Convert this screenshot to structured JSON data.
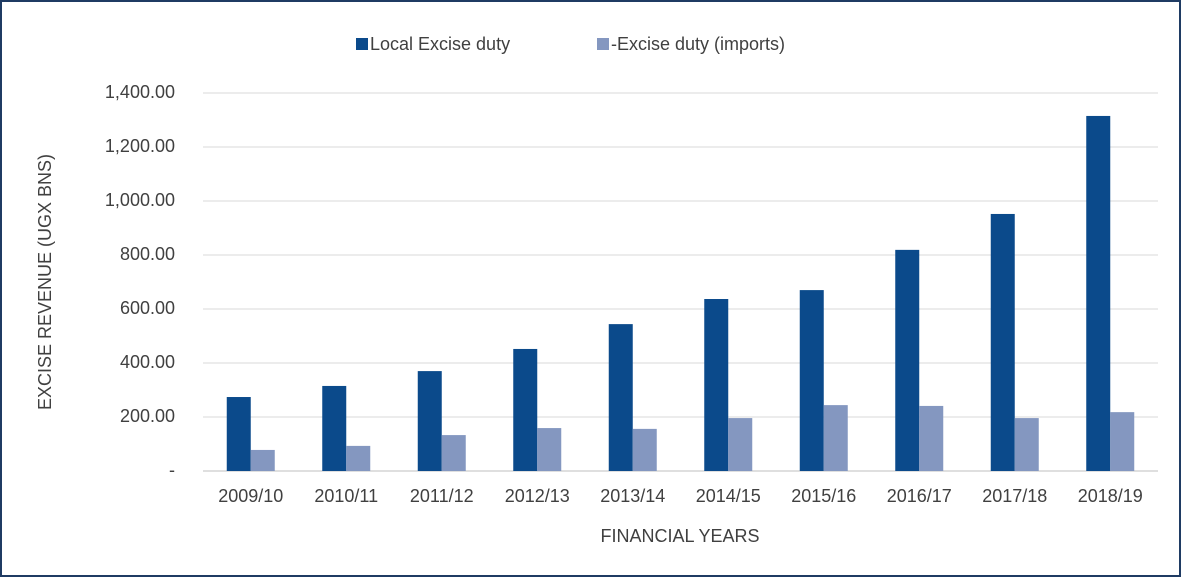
{
  "chart_data": {
    "type": "bar",
    "x_label": "FINANCIAL YEARS",
    "y_label": "EXCISE REVENUE (UGX BNS)",
    "categories": [
      "2009/10",
      "2010/11",
      "2011/12",
      "2012/13",
      "2013/14",
      "2014/15",
      "2015/16",
      "2016/17",
      "2017/18",
      "2018/19"
    ],
    "series": [
      {
        "name": "Local Excise duty",
        "color": "#0b4a8b",
        "values": [
          274,
          315,
          370,
          452,
          544,
          637,
          670,
          819,
          952,
          1315
        ]
      },
      {
        "name": "-Excise duty (imports)",
        "color": "#8497c0",
        "values": [
          78,
          93,
          133,
          159,
          156,
          196,
          244,
          241,
          196,
          218
        ]
      }
    ],
    "ylim": [
      0,
      1400
    ],
    "yticks": [
      {
        "value": 0,
        "label": "-"
      },
      {
        "value": 200,
        "label": "200.00"
      },
      {
        "value": 400,
        "label": "400.00"
      },
      {
        "value": 600,
        "label": "600.00"
      },
      {
        "value": 800,
        "label": "800.00"
      },
      {
        "value": 1000,
        "label": "1,000.00"
      },
      {
        "value": 1200,
        "label": "1,200.00"
      },
      {
        "value": 1400,
        "label": "1,400.00"
      }
    ],
    "grid": true,
    "legend": "top"
  }
}
